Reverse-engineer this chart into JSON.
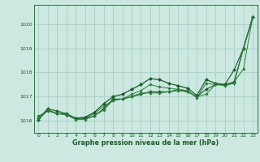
{
  "background_color": "#cce8e0",
  "grid_color": "#aad4cc",
  "line_color_dark": "#1a5c2a",
  "line_color_mid": "#2e7d3a",
  "xlim": [
    -0.5,
    23.5
  ],
  "ylim": [
    1015.5,
    1020.8
  ],
  "yticks": [
    1016,
    1017,
    1018,
    1019,
    1020
  ],
  "xticks": [
    0,
    1,
    2,
    3,
    4,
    5,
    6,
    7,
    8,
    9,
    10,
    11,
    12,
    13,
    14,
    15,
    16,
    17,
    18,
    19,
    20,
    21,
    22,
    23
  ],
  "xlabel": "Graphe pression niveau de la mer (hPa)",
  "series": [
    [
      1016.1,
      1016.5,
      1016.4,
      1016.3,
      1016.1,
      1016.1,
      1016.2,
      1016.5,
      1016.9,
      1016.9,
      1017.0,
      1017.1,
      1017.2,
      1017.2,
      1017.2,
      1017.3,
      1017.2,
      1017.0,
      1017.3,
      1017.5,
      1017.5,
      1018.1,
      1019.0,
      1020.3
    ],
    [
      1016.2,
      1016.4,
      1016.3,
      1016.3,
      1016.1,
      1016.1,
      1016.3,
      1016.6,
      1016.85,
      1016.9,
      1017.0,
      1017.15,
      1017.15,
      1017.15,
      1017.2,
      1017.25,
      1017.2,
      1017.0,
      1017.1,
      1017.5,
      1017.5,
      1017.6,
      1018.15,
      1020.3
    ],
    [
      1016.05,
      1016.45,
      1016.3,
      1016.25,
      1016.1,
      1016.15,
      1016.35,
      1016.7,
      1017.0,
      1017.1,
      1017.3,
      1017.5,
      1017.75,
      1017.7,
      1017.55,
      1017.45,
      1017.35,
      1017.05,
      1017.7,
      1017.55,
      1017.5,
      1017.6,
      1019.0,
      1020.3
    ],
    [
      1016.1,
      1016.45,
      1016.3,
      1016.25,
      1016.05,
      1016.05,
      1016.2,
      1016.45,
      1016.85,
      1016.9,
      1017.1,
      1017.25,
      1017.5,
      1017.4,
      1017.35,
      1017.3,
      1017.25,
      1016.95,
      1017.55,
      1017.5,
      1017.45,
      1017.55,
      1019.0,
      1020.3
    ]
  ]
}
